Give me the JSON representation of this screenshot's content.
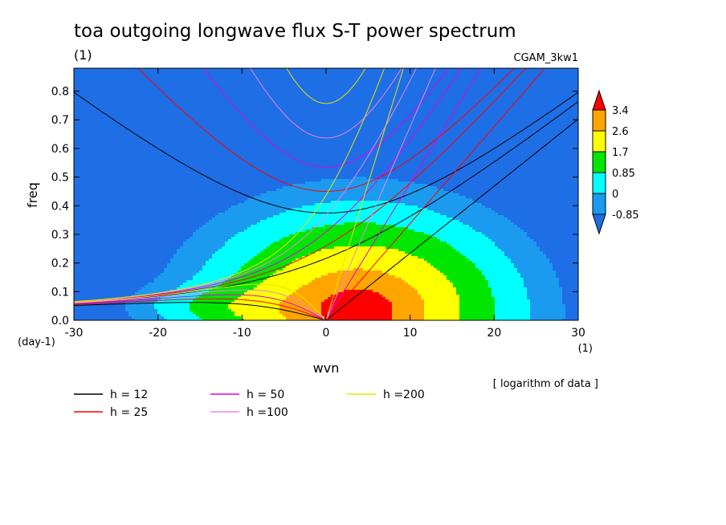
{
  "chart_data": {
    "type": "heatmap",
    "title": "toa outgoing longwave flux S-T power spectrum",
    "title_units": "(1)",
    "dataset": "CGAM_3kw1",
    "xlabel": "wvn",
    "xunits": "(1)",
    "ylabel": "freq",
    "yunits": "(day-1)",
    "note": "[ logarithm of data ]",
    "xlim": [
      -30,
      30
    ],
    "ylim": [
      0,
      0.88
    ],
    "x_ticks": [
      -30,
      -20,
      -10,
      0,
      10,
      20,
      30
    ],
    "y_ticks": [
      0.0,
      0.1,
      0.2,
      0.3,
      0.4,
      0.5,
      0.6,
      0.7,
      0.8
    ],
    "x_tick_labels": [
      "-30",
      "-20",
      "-10",
      "0",
      "10",
      "20",
      "30"
    ],
    "y_tick_labels": [
      "0.0",
      "0.1",
      "0.2",
      "0.3",
      "0.4",
      "0.5",
      "0.6",
      "0.7",
      "0.8"
    ],
    "grid": false,
    "colorbar": {
      "levels": [
        -0.85,
        0,
        0.85,
        1.7,
        2.6,
        3.4
      ],
      "labels": [
        "3.4",
        "2.6",
        "1.7",
        "0.85",
        "0",
        "-0.85"
      ],
      "colors": [
        "#1e6ee6",
        "#1a9bf0",
        "#00ffff",
        "#00e600",
        "#ffff00",
        "#ffa500",
        "#ff0000"
      ],
      "extend": "both"
    },
    "field": {
      "description_levels": "log10 power",
      "peak_x": 4,
      "peak_y": 0.03,
      "peak_value": 4.2
    },
    "dispersion_curves": [
      {
        "name": "h = 12",
        "h": 12,
        "color": "#000000"
      },
      {
        "name": "h = 25",
        "h": 25,
        "color": "#ff0000"
      },
      {
        "name": "h = 50",
        "h": 50,
        "color": "#e600e6"
      },
      {
        "name": "h =100",
        "h": 100,
        "color": "#ee82ee"
      },
      {
        "name": "h =200",
        "h": 200,
        "color": "#e6e600"
      }
    ]
  }
}
